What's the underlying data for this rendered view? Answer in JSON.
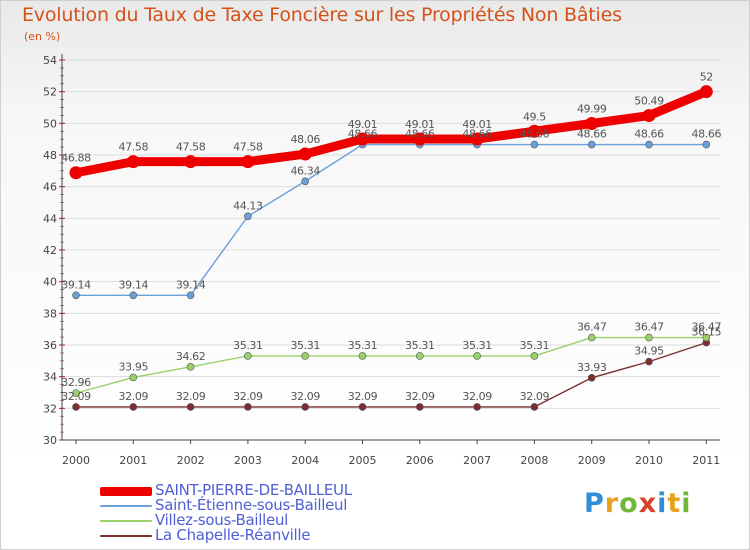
{
  "title": "Evolution du Taux de Taxe Foncière sur les Propriétés Non Bâties",
  "unit_label": "(en %)",
  "logo": {
    "text": "Proxiti",
    "letter_colors": [
      "#2e8fd6",
      "#e8a21b",
      "#6fb83b",
      "#d9412b",
      "#2e8fd6",
      "#e8a21b",
      "#6fb83b"
    ]
  },
  "colors": {
    "title": "#d4521a",
    "axis": "#444444",
    "grid": "#dcdcdc",
    "legend_text": "#4f5fd6"
  },
  "chart_data": {
    "type": "line",
    "title": "Evolution du Taux de Taxe Foncière sur les Propriétés Non Bâties",
    "ylabel": "(en %)",
    "xlabel": "",
    "x": [
      "2000",
      "2001",
      "2002",
      "2003",
      "2004",
      "2005",
      "2006",
      "2007",
      "2008",
      "2009",
      "2010",
      "2011"
    ],
    "ylim": [
      30,
      54
    ],
    "yticks": [
      "30",
      "32",
      "34",
      "36",
      "38",
      "40",
      "42",
      "44",
      "46",
      "48",
      "50",
      "52",
      "54"
    ],
    "grid": "horizontal",
    "legend_position": "bottom-left",
    "series": [
      {
        "name": "SAINT-PIERRE-DE-BAILLEUL",
        "color": "#ee0000",
        "values": [
          46.88,
          47.58,
          47.58,
          47.58,
          48.06,
          49.01,
          49.01,
          49.01,
          49.5,
          49.99,
          50.49,
          52
        ],
        "labels": [
          "46.88",
          "47.58",
          "47.58",
          "47.58",
          "48.06",
          "49.01",
          "49.01",
          "49.01",
          "49.5",
          "49.99",
          "50.49",
          "52"
        ]
      },
      {
        "name": "Saint-Étienne-sous-Bailleul",
        "color": "#6aa0d8",
        "values": [
          39.14,
          39.14,
          39.14,
          44.13,
          46.34,
          48.66,
          48.66,
          48.66,
          48.66,
          48.66,
          48.66,
          48.66
        ],
        "labels": [
          "39.14",
          "39.14",
          "39.14",
          "44.13",
          "46.34",
          "48.66",
          "48.66",
          "48.66",
          "48.66",
          "48.66",
          "48.66",
          "48.66"
        ]
      },
      {
        "name": "Villez-sous-Bailleul",
        "color": "#99d26a",
        "values": [
          32.96,
          33.95,
          34.62,
          35.31,
          35.31,
          35.31,
          35.31,
          35.31,
          35.31,
          36.47,
          36.47,
          36.47
        ],
        "labels": [
          "32.96",
          "33.95",
          "34.62",
          "35.31",
          "35.31",
          "35.31",
          "35.31",
          "35.31",
          "35.31",
          "36.47",
          "36.47",
          "36.47"
        ]
      },
      {
        "name": "La Chapelle-Réanville",
        "color": "#7b2f2f",
        "values": [
          32.09,
          32.09,
          32.09,
          32.09,
          32.09,
          32.09,
          32.09,
          32.09,
          32.09,
          33.93,
          34.95,
          36.15
        ],
        "labels": [
          "32.09",
          "32.09",
          "32.09",
          "32.09",
          "32.09",
          "32.09",
          "32.09",
          "32.09",
          "32.09",
          "33.93",
          "34.95",
          "36.15"
        ]
      }
    ]
  }
}
